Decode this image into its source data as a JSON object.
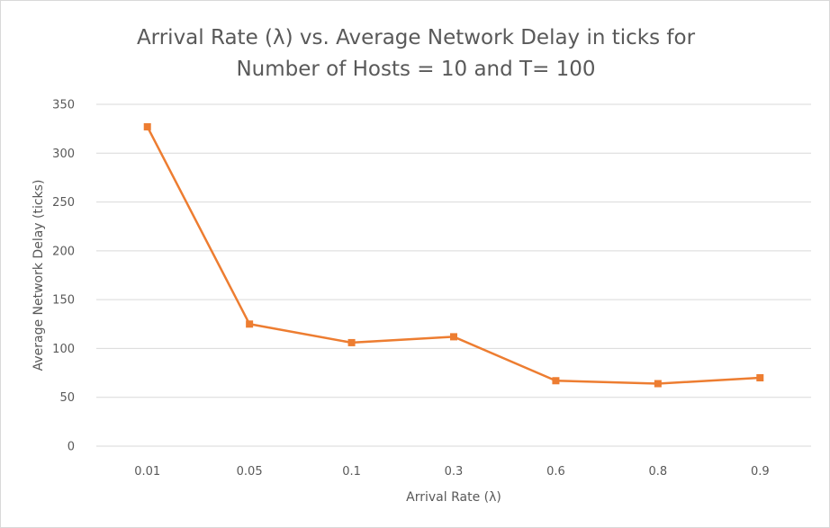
{
  "chart_data": {
    "type": "line",
    "title_lines": [
      "Arrival Rate (λ) vs. Average Network Delay in ticks for",
      "Number of Hosts = 10 and T= 100"
    ],
    "xlabel": "Arrival Rate (λ)",
    "ylabel": "Average Network Delay (ticks)",
    "categories": [
      "0.01",
      "0.05",
      "0.1",
      "0.3",
      "0.6",
      "0.8",
      "0.9"
    ],
    "series": [
      {
        "values": [
          327,
          125,
          106,
          112,
          67,
          64,
          70
        ],
        "color": "#ed7d31",
        "marker": "square"
      }
    ],
    "ylim": [
      0,
      350
    ],
    "yticks": [
      "0",
      "50",
      "100",
      "150",
      "200",
      "250",
      "300",
      "350"
    ],
    "grid": true,
    "legend": "none"
  },
  "colors": {
    "line": "#ed7d31",
    "grid": "#d9d9d9",
    "text": "#595959"
  }
}
